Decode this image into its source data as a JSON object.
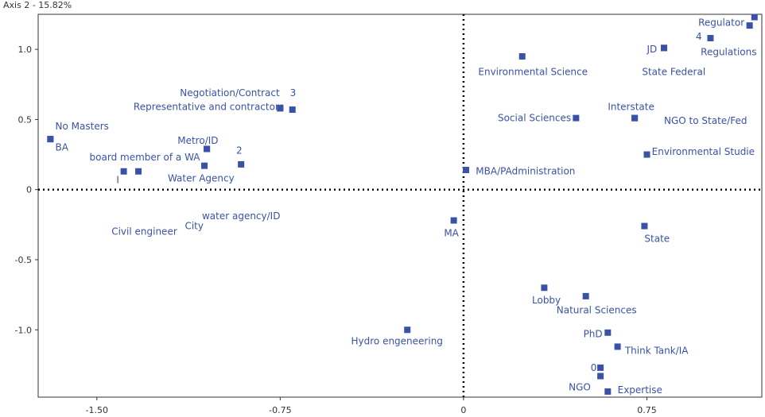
{
  "chart_data": {
    "type": "scatter",
    "title": "",
    "ylabel": "Axis 2 - 15.82%",
    "xlabel": "",
    "xlim": [
      -1.74,
      1.22
    ],
    "ylim": [
      -1.48,
      1.25
    ],
    "x_ticks": [
      {
        "value": -1.5,
        "label": "-1.50"
      },
      {
        "value": -0.75,
        "label": "-0.75"
      },
      {
        "value": 0,
        "label": "0"
      },
      {
        "value": 0.75,
        "label": "0.75"
      }
    ],
    "y_ticks": [
      {
        "value": 1.0,
        "label": "1.0"
      },
      {
        "value": 0.5,
        "label": "0.5"
      },
      {
        "value": 0,
        "label": "0"
      },
      {
        "value": -0.5,
        "label": "-0.5"
      },
      {
        "value": -1.0,
        "label": "-1.0"
      }
    ],
    "grid": false,
    "points": [
      {
        "name": "Regulator",
        "x": 1.19,
        "y": 1.23,
        "lx": 0.96,
        "ly": 1.19,
        "anchor": "start"
      },
      {
        "name": "4",
        "x": 1.17,
        "y": 1.17,
        "lx": 0.95,
        "ly": 1.09,
        "anchor": "start"
      },
      {
        "name": "Regulations",
        "x": 1.01,
        "y": 1.08,
        "lx": 0.97,
        "ly": 0.98,
        "anchor": "start"
      },
      {
        "name": "JD",
        "x": 0.82,
        "y": 1.01,
        "lx": 0.75,
        "ly": 1.0,
        "anchor": "start"
      },
      {
        "name": "State Federal",
        "x": 0.82,
        "y": 1.01,
        "lx": 0.73,
        "ly": 0.84,
        "anchor": "start"
      },
      {
        "name": "Environmental Science",
        "x": 0.24,
        "y": 0.95,
        "lx": 0.06,
        "ly": 0.84,
        "anchor": "start"
      },
      {
        "name": "Interstate",
        "x": 0.7,
        "y": 0.51,
        "lx": 0.59,
        "ly": 0.59,
        "anchor": "start"
      },
      {
        "name": "NGO to State/Fed",
        "x": 0.7,
        "y": 0.51,
        "lx": 0.82,
        "ly": 0.49,
        "anchor": "start"
      },
      {
        "name": "Social Sciences",
        "x": 0.46,
        "y": 0.51,
        "lx": 0.14,
        "ly": 0.51,
        "anchor": "start"
      },
      {
        "name": "Environmental Studie",
        "x": 0.75,
        "y": 0.25,
        "lx": 0.77,
        "ly": 0.27,
        "anchor": "start"
      },
      {
        "name": "MBA/PAdministration",
        "x": 0.01,
        "y": 0.14,
        "lx": 0.05,
        "ly": 0.13,
        "anchor": "start"
      },
      {
        "name": "MA",
        "x": -0.04,
        "y": -0.22,
        "lx": -0.08,
        "ly": -0.31,
        "anchor": "start"
      },
      {
        "name": "State",
        "x": 0.74,
        "y": -0.26,
        "lx": 0.74,
        "ly": -0.35,
        "anchor": "start"
      },
      {
        "name": "Lobby",
        "x": 0.33,
        "y": -0.7,
        "lx": 0.28,
        "ly": -0.79,
        "anchor": "start"
      },
      {
        "name": "Natural Sciences",
        "x": 0.5,
        "y": -0.76,
        "lx": 0.38,
        "ly": -0.86,
        "anchor": "start"
      },
      {
        "name": "PhD",
        "x": 0.59,
        "y": -1.02,
        "lx": 0.49,
        "ly": -1.03,
        "anchor": "start"
      },
      {
        "name": "Think Tank/IA",
        "x": 0.63,
        "y": -1.12,
        "lx": 0.66,
        "ly": -1.15,
        "anchor": "start"
      },
      {
        "name": "0",
        "x": 0.56,
        "y": -1.27,
        "lx": 0.52,
        "ly": -1.27,
        "anchor": "start"
      },
      {
        "name": "NGO",
        "x": 0.56,
        "y": -1.33,
        "lx": 0.43,
        "ly": -1.41,
        "anchor": "start"
      },
      {
        "name": "Expertise",
        "x": 0.59,
        "y": -1.44,
        "lx": 0.63,
        "ly": -1.43,
        "anchor": "start"
      },
      {
        "name": "Hydro engeneering",
        "x": -0.23,
        "y": -1.0,
        "lx": -0.46,
        "ly": -1.08,
        "anchor": "start"
      },
      {
        "name": "Negotiation/Contract",
        "x": -0.75,
        "y": 0.58,
        "lx": -1.16,
        "ly": 0.69,
        "anchor": "start"
      },
      {
        "name": "3",
        "x": -0.7,
        "y": 0.57,
        "lx": -0.71,
        "ly": 0.69,
        "anchor": "start"
      },
      {
        "name": "Representative and contractors",
        "x": -0.75,
        "y": 0.58,
        "lx": -1.35,
        "ly": 0.59,
        "anchor": "start"
      },
      {
        "name": "No Masters",
        "x": -1.69,
        "y": 0.36,
        "lx": -1.67,
        "ly": 0.45,
        "anchor": "start"
      },
      {
        "name": "BA",
        "x": -1.69,
        "y": 0.36,
        "lx": -1.67,
        "ly": 0.3,
        "anchor": "start"
      },
      {
        "name": "Metro/ID",
        "x": -1.05,
        "y": 0.29,
        "lx": -1.17,
        "ly": 0.35,
        "anchor": "start"
      },
      {
        "name": "2",
        "x": -0.91,
        "y": 0.18,
        "lx": -0.93,
        "ly": 0.28,
        "anchor": "start"
      },
      {
        "name": "board member of a WA",
        "x": -1.05,
        "y": 0.29,
        "lx": -1.53,
        "ly": 0.23,
        "anchor": "start"
      },
      {
        "name": "I",
        "x": -1.39,
        "y": 0.13,
        "lx": -1.42,
        "ly": 0.07,
        "anchor": "start"
      },
      {
        "name": "Water Agency",
        "x": -1.06,
        "y": 0.17,
        "lx": -1.21,
        "ly": 0.08,
        "anchor": "start"
      },
      {
        "name": "",
        "x": -1.33,
        "y": 0.13,
        "lx": 0,
        "ly": 0,
        "anchor": "start"
      },
      {
        "name": "water agency/ID",
        "x": null,
        "y": null,
        "lx": -1.07,
        "ly": -0.19,
        "anchor": "start"
      },
      {
        "name": "City",
        "x": null,
        "y": null,
        "lx": -1.14,
        "ly": -0.26,
        "anchor": "start"
      },
      {
        "name": "Civil engineer",
        "x": null,
        "y": null,
        "lx": -1.44,
        "ly": -0.3,
        "anchor": "start"
      }
    ]
  },
  "colors": {
    "point": "#3a52a6",
    "label": "#3a52a6",
    "axis": "#333333",
    "reference": "#000000"
  }
}
